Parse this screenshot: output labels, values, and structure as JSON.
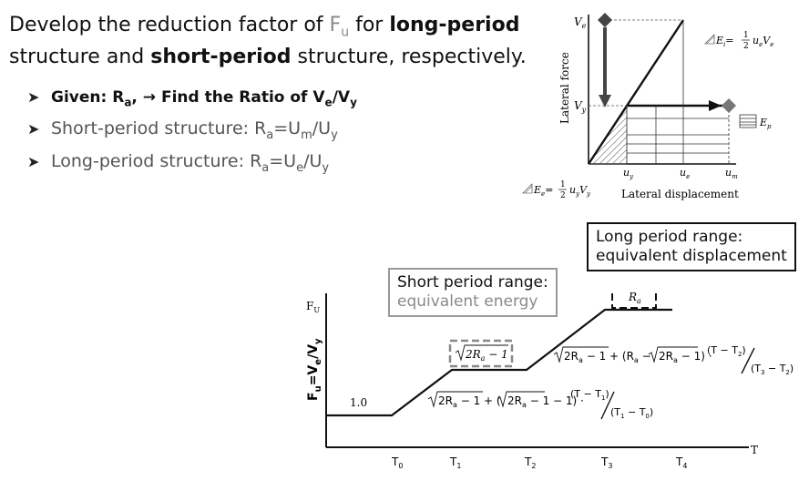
{
  "header": {
    "line1_pre": "Develop the reduction factor of ",
    "line1_fu_base": "F",
    "line1_fu_sub": "u",
    "line1_mid": " for ",
    "line1_bold": "long-period",
    "line2_pre": "structure and ",
    "line2_bold": "short-period",
    "line2_post": " structure, respectively."
  },
  "bullets": {
    "given": {
      "pre": "Given: R",
      "sub_a": "a",
      "post": ", → Find the Ratio of V",
      "sub_e": "e",
      "slash": "/V",
      "sub_y": "y"
    },
    "short": {
      "pre": "Short-period structure: R",
      "sub_a": "a",
      "mid": "=U",
      "sub_m": "m",
      "slash": "/U",
      "sub_y": "y"
    },
    "long": {
      "pre": "Long-period structure:  R",
      "sub_a": "a",
      "mid": "=U",
      "sub_e": "e",
      "slash": "/U",
      "sub_y": "y"
    }
  },
  "callouts": {
    "long_line1": "Long period range:",
    "long_line2": "equivalent displacement",
    "short_line1": "Short period range:",
    "short_line2": "equivalent energy"
  },
  "pushover": {
    "y_axis_label": "Lateral force",
    "x_axis_label": "Lateral displacement",
    "ve_label": "V",
    "ve_sub": "e",
    "vy_label": "V",
    "vy_sub": "y",
    "uy_label": "u",
    "uy_sub": "y",
    "ue_label": "u",
    "ue_sub": "e",
    "um_label": "u",
    "um_sub": "m",
    "ei_label": "E",
    "ei_sub": "i",
    "ei_eq": "=",
    "ei_frac_num": "1",
    "ei_frac_den": "2",
    "ei_tail": "u",
    "ei_tail_sub": "e",
    "ei_tail2": "V",
    "ei_tail2_sub": "e",
    "ep_label": "E",
    "ep_sub": "p",
    "ee_label": "E",
    "ee_sub": "e",
    "ee_eq": "=",
    "ee_frac_num": "1",
    "ee_frac_den": "2",
    "ee_tail": "u",
    "ee_tail_sub": "y",
    "ee_tail2": "V",
    "ee_tail2_sub": "y"
  },
  "spectrum": {
    "y_top_label": "F",
    "y_top_sub": "U",
    "y_axis_label": "F",
    "y_axis_sub_u": "u",
    "y_axis_eq": "=V",
    "y_axis_sub_e": "e",
    "y_axis_slash": "/V",
    "y_axis_sub_y": "y",
    "x_axis_label": "T",
    "value_one": "1.0",
    "ticks": [
      {
        "label": "T",
        "sub": "0"
      },
      {
        "label": "T",
        "sub": "1"
      },
      {
        "label": "T",
        "sub": "2"
      },
      {
        "label": "T",
        "sub": "3"
      },
      {
        "label": "T",
        "sub": "4"
      }
    ],
    "plateau_ra": "R",
    "plateau_ra_sub": "a",
    "plateau_sqrt": "2R",
    "plateau_sqrt_sub": "a",
    "plateau_sqrt_tail": " − 1",
    "formula_t1_t2": {
      "p1": "2R",
      "p1_sub": "a",
      "p2": " − 1 + (",
      "p3": "2R",
      "p3_sub": "a",
      "p4": " − 1 − 1) · ",
      "num": "(T − T",
      "num_sub": "1",
      "num_close": ")",
      "den": "(T",
      "den_sub1": "1",
      "den_mid": " − T",
      "den_sub2": "0",
      "den_close": ")"
    },
    "formula_t2_t3": {
      "p1": "2R",
      "p1_sub": "a",
      "p2": " − 1 + (R",
      "p2_sub": "a",
      "p3": " − ",
      "p4": "2R",
      "p4_sub": "a",
      "p5": " − 1) · ",
      "num": "(T − T",
      "num_sub": "2",
      "num_close": ")",
      "den": "(T",
      "den_sub1": "3",
      "den_mid": " − T",
      "den_sub2": "2",
      "den_close": ")"
    }
  }
}
